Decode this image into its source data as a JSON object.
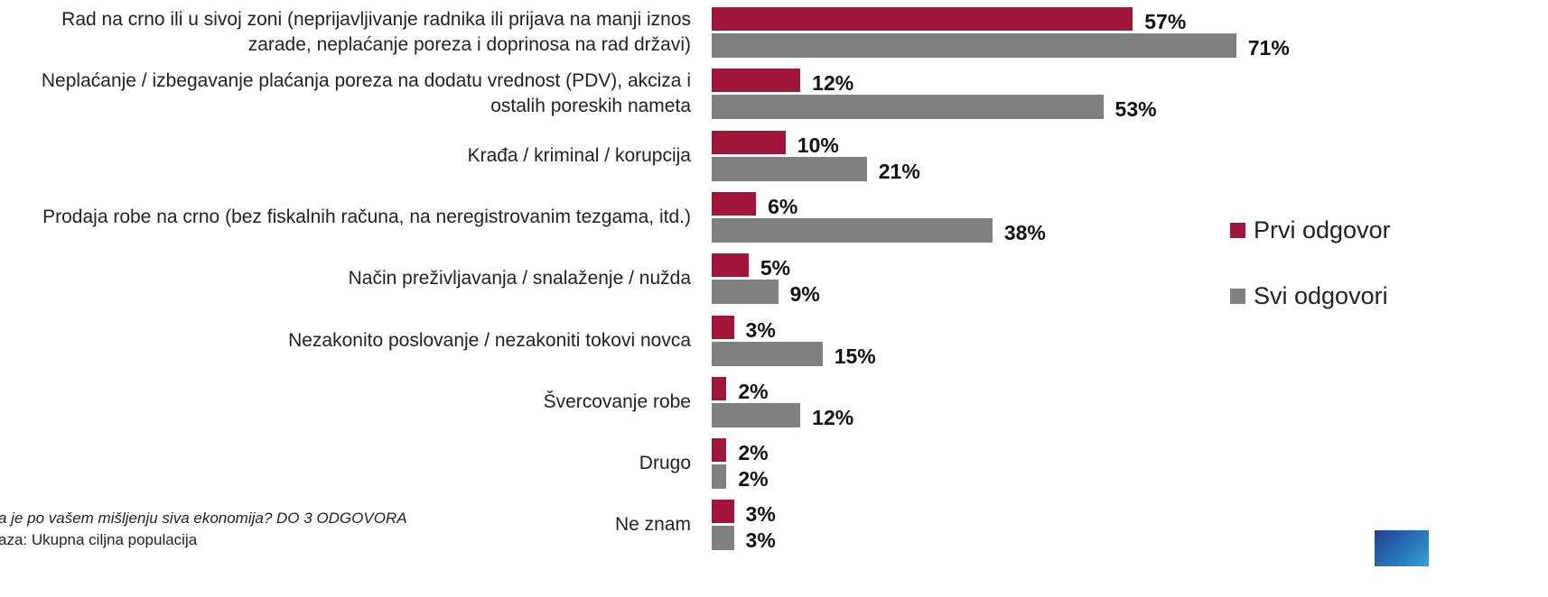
{
  "chart_data": {
    "type": "bar",
    "orientation": "horizontal",
    "categories": [
      "Rad na crno ili u sivoj zoni (neprijavljivanje radnika ili prijava na manji iznos zarade, neplaćanje poreza i doprinosa na rad državi)",
      "Neplaćanje / izbegavanje plaćanja poreza na dodatu vrednost (PDV), akciza i ostalih poreskih nameta",
      "Krađa / kriminal / korupcija",
      "Prodaja robe na crno (bez fiskalnih računa, na neregistrovanim tezgama, itd.)",
      "Način preživljavanja / snalaženje / nužda",
      "Nezakonito poslovanje / nezakoniti tokovi novca",
      "Švercovanje robe",
      "Drugo",
      "Ne znam"
    ],
    "series": [
      {
        "name": "Prvi odgovor",
        "color": "#a0163a",
        "values": [
          57,
          12,
          10,
          6,
          5,
          3,
          2,
          2,
          3
        ],
        "value_labels": [
          "57%",
          "12%",
          "10%",
          "6%",
          "5%",
          "3%",
          "2%",
          "2%",
          "3%"
        ]
      },
      {
        "name": "Svi odgovori",
        "color": "#808080",
        "values": [
          71,
          53,
          21,
          38,
          9,
          15,
          12,
          2,
          3
        ],
        "value_labels": [
          "71%",
          "53%",
          "21%",
          "38%",
          "9%",
          "15%",
          "12%",
          "2%",
          "3%"
        ]
      }
    ],
    "legend": "right",
    "notes": [
      "a je po vašem mišljenju siva ekonomija? DO 3 ODGOVORA",
      "aza: Ukupna ciljna populacija"
    ]
  }
}
